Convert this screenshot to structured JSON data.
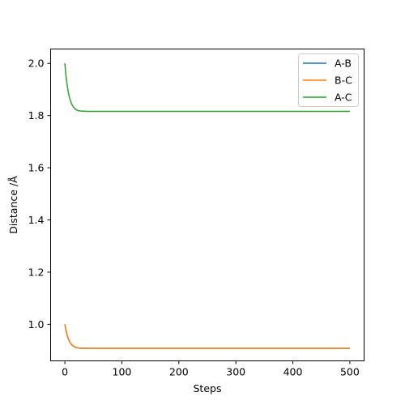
{
  "chart_data": {
    "type": "line",
    "title": "",
    "xlabel": "Steps",
    "ylabel": "Distance /Å",
    "xlim": [
      -25,
      525
    ],
    "ylim": [
      0.86,
      2.055
    ],
    "xticks": [
      0,
      100,
      200,
      300,
      400,
      500
    ],
    "yticks": [
      1.0,
      1.2,
      1.4,
      1.6,
      1.8,
      2.0
    ],
    "xtick_labels": [
      "0",
      "100",
      "200",
      "300",
      "400",
      "500"
    ],
    "ytick_labels": [
      "1.0",
      "1.2",
      "1.4",
      "1.6",
      "1.8",
      "2.0"
    ],
    "grid": false,
    "legend_position": "upper right",
    "x": [
      0,
      2,
      4,
      6,
      8,
      10,
      12,
      14,
      16,
      18,
      20,
      25,
      30,
      40,
      50,
      75,
      100,
      150,
      200,
      250,
      300,
      350,
      400,
      450,
      500
    ],
    "series": [
      {
        "name": "A-B",
        "color": "#1f77b4",
        "values": [
          1.0,
          0.976,
          0.958,
          0.945,
          0.935,
          0.928,
          0.922,
          0.918,
          0.915,
          0.913,
          0.911,
          0.909,
          0.908,
          0.908,
          0.908,
          0.908,
          0.908,
          0.908,
          0.908,
          0.908,
          0.908,
          0.908,
          0.908,
          0.908,
          0.908
        ]
      },
      {
        "name": "B-C",
        "color": "#ff7f0e",
        "values": [
          1.0,
          0.976,
          0.958,
          0.945,
          0.935,
          0.928,
          0.922,
          0.918,
          0.915,
          0.913,
          0.911,
          0.909,
          0.908,
          0.908,
          0.908,
          0.908,
          0.908,
          0.908,
          0.908,
          0.908,
          0.908,
          0.908,
          0.908,
          0.908,
          0.908
        ]
      },
      {
        "name": "A-C",
        "color": "#2ca02c",
        "values": [
          2.0,
          1.951,
          1.916,
          1.89,
          1.87,
          1.855,
          1.844,
          1.836,
          1.83,
          1.826,
          1.822,
          1.818,
          1.817,
          1.816,
          1.816,
          1.816,
          1.816,
          1.816,
          1.816,
          1.816,
          1.816,
          1.816,
          1.816,
          1.816,
          1.816
        ]
      }
    ]
  }
}
